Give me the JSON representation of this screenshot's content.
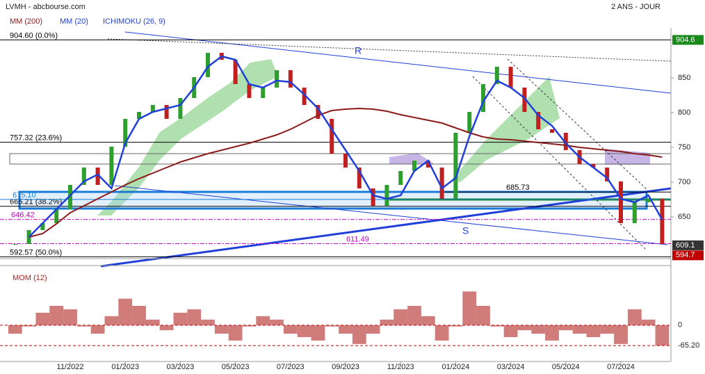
{
  "chart_data": {
    "type": "candle",
    "header": "LVMH - abcbourse.com",
    "period": "2 ANS - JOUR",
    "ichimoku_label": "ICHIMOKU (26, 9)",
    "categories": [
      null,
      null,
      null,
      null,
      "11/2022",
      null,
      null,
      null,
      "01/2023",
      null,
      null,
      null,
      "03/2023",
      null,
      null,
      null,
      "05/2023",
      null,
      null,
      null,
      "07/2023",
      null,
      null,
      null,
      "09/2023",
      null,
      null,
      null,
      "11/2023",
      null,
      null,
      null,
      "01/2024",
      null,
      null,
      null,
      "03/2024",
      null,
      null,
      null,
      "05/2024",
      null,
      null,
      null,
      "07/2024",
      null,
      null,
      null
    ],
    "values": [
      611,
      631,
      641,
      661,
      696,
      721,
      696,
      751,
      791,
      801,
      811,
      791,
      821,
      851,
      886,
      876,
      841,
      821,
      836,
      861,
      836,
      811,
      791,
      741,
      721,
      691,
      666,
      696,
      716,
      731,
      721,
      676,
      771,
      801,
      841,
      866,
      836,
      801,
      776,
      771,
      746,
      726,
      721,
      701,
      641,
      671,
      676,
      611
    ],
    "up_color": "#2e9e2e",
    "down_color": "#c02020",
    "series": [
      {
        "name": "MM (200)",
        "color": "#8b1a1a",
        "values": [
          null,
          621,
          626,
          640,
          656,
          666,
          676,
          686,
          696,
          705,
          713,
          721,
          729,
          735,
          741,
          746,
          751,
          756,
          762,
          768,
          776,
          786,
          796,
          803,
          805,
          806,
          805,
          802,
          797,
          793,
          789,
          785,
          778,
          771,
          765,
          762,
          761,
          759,
          757,
          755,
          753,
          750,
          748,
          746,
          744,
          741,
          739,
          736
        ]
      },
      {
        "name": "MM (20)",
        "color": "#1f3fd8",
        "values": [
          null,
          621,
          641,
          661,
          681,
          701,
          711,
          691,
          756,
          791,
          801,
          806,
          811,
          836,
          866,
          881,
          876,
          841,
          836,
          846,
          844,
          826,
          806,
          776,
          746,
          716,
          681,
          676,
          681,
          716,
          731,
          691,
          706,
          766,
          816,
          846,
          836,
          821,
          796,
          781,
          756,
          736,
          721,
          706,
          676,
          671,
          681,
          646
        ]
      }
    ],
    "ylim": [
      590,
      922
    ],
    "yticks": [
      650,
      700,
      750,
      800,
      850
    ],
    "levels": [
      {
        "value": 904.6,
        "label": "904.60 (0.0%)"
      },
      {
        "value": 757.32,
        "label": "757.32 (23.6%)"
      },
      {
        "value": 665.21,
        "label": "665.21 (38.2%)"
      },
      {
        "value": 592.57,
        "label": "592.57 (50.0%)"
      },
      {
        "value": 675.1,
        "label": "675.10"
      },
      {
        "value": 646.42,
        "label": "646.42"
      },
      {
        "value": 611.49,
        "label": "611.49"
      },
      {
        "value": 685.73,
        "label": "685.73"
      }
    ],
    "level_colors": [
      "#000000",
      "#000000",
      "#000000",
      "#000000",
      "#1a7ad8",
      "#c000c0",
      "#c000c0",
      "#000000"
    ],
    "price_tags": [
      904.6,
      609.1,
      594.7
    ],
    "price_tag_colors": [
      "#1a8a1a",
      "#333333",
      "#c00000"
    ],
    "annotations": [
      "R",
      "S"
    ],
    "mom": {
      "title": "MOM (12)",
      "color": "#c0504d",
      "values": [
        -27,
        -4,
        40,
        62,
        51,
        -4,
        -27,
        29,
        85,
        62,
        18,
        -16,
        40,
        51,
        18,
        -27,
        -49,
        -4,
        29,
        18,
        -27,
        -38,
        -49,
        -4,
        -27,
        -60,
        -27,
        18,
        51,
        62,
        29,
        -49,
        -4,
        108,
        62,
        -4,
        -38,
        -16,
        -27,
        -49,
        -16,
        -27,
        -38,
        -27,
        -60,
        51,
        18,
        -65.2
      ],
      "ylim": [
        -116,
        162
      ],
      "yticks": [
        0,
        {
          "value": -65.2,
          "label": "-65.20"
        }
      ]
    }
  }
}
